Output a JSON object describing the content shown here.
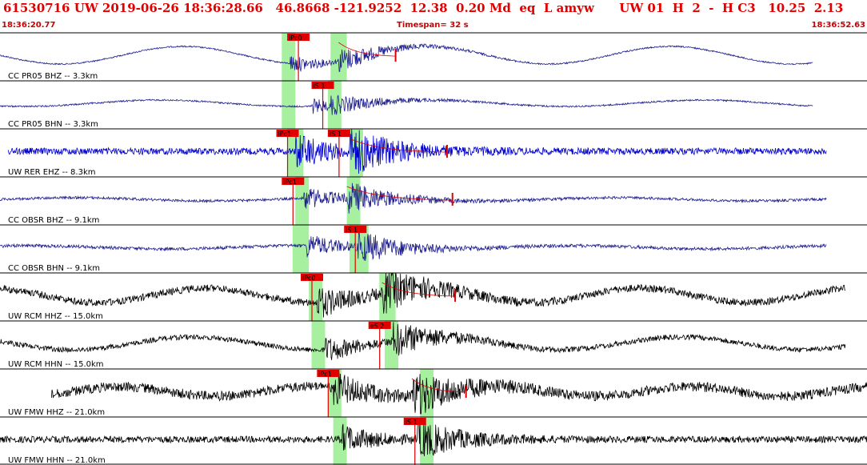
{
  "header": {
    "event_id": "61530716",
    "network": "UW",
    "datetime": "2019-06-26 18:36:28.66",
    "lat": "46.8668",
    "lon": "-121.9252",
    "depth": "12.38",
    "magnitude": "0.20",
    "mag_type": "Md",
    "event_type": "eq",
    "flag": "L",
    "author": "amyw",
    "extra": "UW 01  H  2  -  H C3",
    "val1": "10.25",
    "val2": "2.13",
    "time_start": "18:36:20.77",
    "timespan": "Timespan=  32 s",
    "time_end": "18:36:52.63"
  },
  "colors": {
    "header": "#e00000",
    "pick": "#e00000",
    "window": "#a6f0a0",
    "coda": "#e00000",
    "separator": "#000000"
  },
  "chart_data": {
    "type": "line",
    "xlim_seconds": [
      0,
      32
    ],
    "traces": [
      {
        "label": "CC PR05 BHZ -- 3.3km",
        "color": "#1f1f8f",
        "amp": 6,
        "noise": 0.15,
        "lf_amp": 11,
        "lf_period": 9,
        "onset": 10.7,
        "s": 12.5,
        "end": 30.0,
        "start": 0.0,
        "picks": [
          {
            "t": 10.6,
            "label": "iPc0"
          }
        ],
        "green": [
          10.4,
          10.9,
          12.2,
          12.8
        ],
        "coda_end": 14.6
      },
      {
        "label": "CC PR05 BHN -- 3.3km",
        "color": "#1f1f8f",
        "amp": 5,
        "noise": 0.2,
        "lf_amp": 4,
        "lf_period": 10,
        "onset": 11.5,
        "s": 12.2,
        "end": 30.0,
        "start": 0.0,
        "picks": [
          {
            "t": 11.5,
            "label": "iS 1"
          }
        ],
        "green": [
          10.4,
          10.9,
          12.1,
          12.6
        ],
        "coda_end": null
      },
      {
        "label": "UW RER EHZ -- 8.3km",
        "color": "#0000cc",
        "amp": 12,
        "noise": 0.35,
        "lf_amp": 0,
        "lf_period": 10,
        "onset": 10.9,
        "s": 12.9,
        "end": 30.5,
        "start": 0.3,
        "picks": [
          {
            "t": 10.2,
            "label": "iPc1"
          },
          {
            "t": 12.1,
            "label": "iS 1"
          }
        ],
        "green": [
          10.6,
          11.2,
          12.9,
          13.4
        ],
        "coda_end": 16.5
      },
      {
        "label": "CC OBSR BHZ -- 9.1km",
        "color": "#1f1f8f",
        "amp": 8,
        "noise": 0.2,
        "lf_amp": 2,
        "lf_period": 10,
        "onset": 11.2,
        "s": 12.8,
        "end": 30.5,
        "start": 0.0,
        "picks": [
          {
            "t": 10.4,
            "label": "iPc1"
          }
        ],
        "green": [
          10.9,
          11.4,
          12.8,
          13.3
        ],
        "coda_end": 16.7
      },
      {
        "label": "CC OBSR BHN -- 9.1km",
        "color": "#1f1f8f",
        "amp": 8,
        "noise": 0.25,
        "lf_amp": 2,
        "lf_period": 10,
        "onset": 11.3,
        "s": 13.2,
        "end": 30.5,
        "start": 0.0,
        "picks": [
          {
            "t": 12.7,
            "label": "iS 1"
          }
        ],
        "green": [
          10.8,
          11.4,
          12.9,
          13.6
        ],
        "coda_end": null
      },
      {
        "label": "UW RCM HHZ -- 15.0km",
        "color": "#000000",
        "amp": 10,
        "noise": 0.45,
        "lf_amp": 9,
        "lf_period": 8,
        "onset": 11.7,
        "s": 14.1,
        "end": 31.2,
        "start": 0.0,
        "picks": [
          {
            "t": 11.1,
            "label": "iPc0"
          }
        ],
        "green": [
          11.4,
          11.9,
          14.0,
          14.6
        ],
        "coda_end": 16.8
      },
      {
        "label": "UW RCM HHN -- 15.0km",
        "color": "#000000",
        "amp": 8,
        "noise": 0.4,
        "lf_amp": 8,
        "lf_period": 9,
        "onset": 12.0,
        "s": 14.5,
        "end": 31.2,
        "start": 0.0,
        "picks": [
          {
            "t": 13.6,
            "label": "eS 2"
          }
        ],
        "green": [
          11.5,
          12.0,
          14.2,
          14.7
        ],
        "coda_end": null
      },
      {
        "label": "UW FMW HHZ -- 21.0km",
        "color": "#000000",
        "amp": 10,
        "noise": 0.6,
        "lf_amp": 6,
        "lf_period": 7,
        "onset": 12.3,
        "s": 15.2,
        "end": 32.0,
        "start": 1.9,
        "picks": [
          {
            "t": 11.7,
            "label": "iPc1"
          }
        ],
        "green": [
          12.1,
          12.6,
          15.5,
          16.0
        ],
        "coda_end": 17.2
      },
      {
        "label": "UW FMW HHN -- 21.0km",
        "color": "#000000",
        "amp": 9,
        "noise": 0.45,
        "lf_amp": 0,
        "lf_period": 8,
        "onset": 12.6,
        "s": 15.4,
        "end": 32.0,
        "start": 0.0,
        "picks": [
          {
            "t": 14.9,
            "label": "iS 1"
          }
        ],
        "green": [
          12.3,
          12.8,
          15.5,
          16.0
        ],
        "coda_end": null
      }
    ]
  }
}
